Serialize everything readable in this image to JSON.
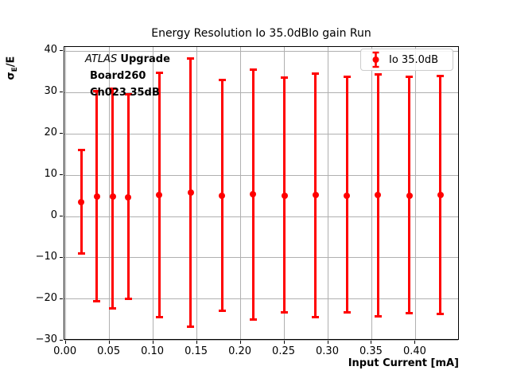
{
  "annotation": {
    "line1_italic": "ATLAS",
    "line1_bold": "Upgrade",
    "line2": "Board260",
    "line3": "Ch023 35dB"
  },
  "chart_data": {
    "type": "scatter",
    "title": "Energy Resolution Io 35.0dBIo gain Run",
    "xlabel": "Input Current [mA]",
    "ylabel": "σE/E",
    "ylabel_parts": {
      "sigma": "σ",
      "sub": "E",
      "rest": "/E"
    },
    "legend": {
      "label": "Io 35.0dB",
      "position": "upper right"
    },
    "grid": true,
    "grid_color": "#b0b0b0",
    "xlim": [
      -0.0015,
      0.4505
    ],
    "ylim": [
      -30.05,
      41.05
    ],
    "xtick_values": [
      0.0,
      0.05,
      0.1,
      0.15,
      0.2,
      0.25,
      0.3,
      0.35,
      0.4
    ],
    "xtick_labels": [
      "0.00",
      "0.05",
      "0.10",
      "0.15",
      "0.20",
      "0.25",
      "0.30",
      "0.35",
      "0.40"
    ],
    "ytick_values": [
      -30,
      -20,
      -10,
      0,
      10,
      20,
      30,
      40
    ],
    "ytick_labels": [
      "−30",
      "−20",
      "−10",
      "0",
      "10",
      "20",
      "30",
      "40"
    ],
    "series": [
      {
        "name": "Io 35.0dB",
        "color": "#ff0000",
        "marker": "circle",
        "x": [
          0.0179,
          0.0357,
          0.0536,
          0.0714,
          0.1071,
          0.1429,
          0.1786,
          0.2143,
          0.25,
          0.2857,
          0.3214,
          0.3571,
          0.3929,
          0.4286
        ],
        "y": [
          3.5,
          4.9,
          4.9,
          4.7,
          5.2,
          5.7,
          5.1,
          5.5,
          5.1,
          5.2,
          5.1,
          5.2,
          5.1,
          5.2
        ],
        "y_upper": [
          16.1,
          30.4,
          31.0,
          29.6,
          34.8,
          38.3,
          33.1,
          35.6,
          33.7,
          34.6,
          33.9,
          34.4,
          33.9,
          34.1
        ],
        "y_lower": [
          -8.9,
          -20.6,
          -22.2,
          -20.0,
          -24.3,
          -26.6,
          -22.8,
          -24.9,
          -23.3,
          -24.3,
          -23.3,
          -24.1,
          -23.4,
          -23.6
        ]
      }
    ]
  }
}
